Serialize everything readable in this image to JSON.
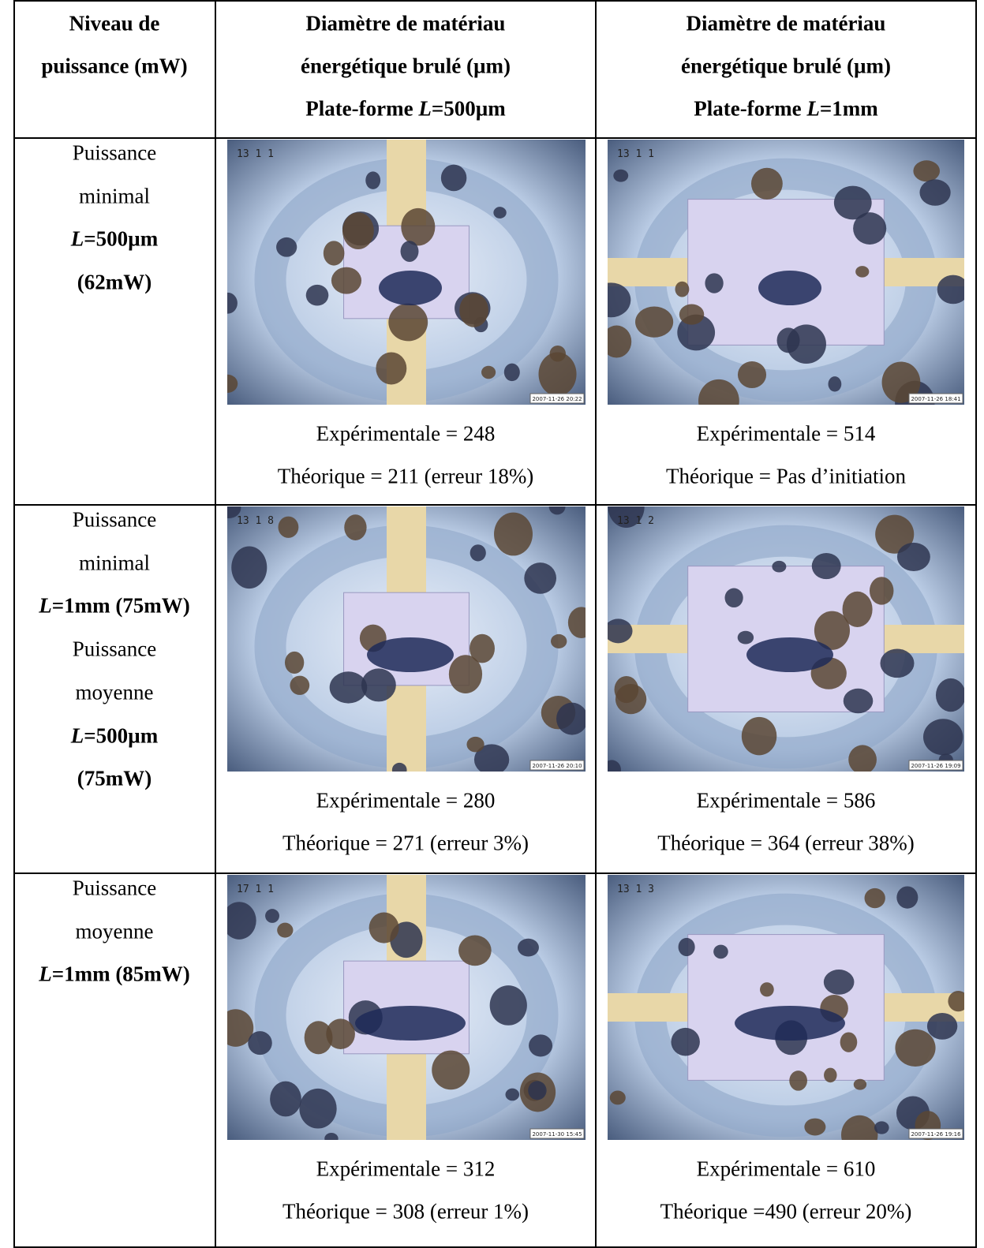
{
  "header": {
    "col1": [
      "Niveau de",
      "puissance (mW)"
    ],
    "col2": [
      "Diamètre de matériau",
      "énergétique brulé (µm)",
      [
        "Plate-forme ",
        "L",
        "=500µm"
      ]
    ],
    "col3": [
      "Diamètre de matériau",
      "énergétique brulé (µm)",
      [
        "Plate-forme ",
        "L",
        "=1mm"
      ]
    ]
  },
  "rows": [
    {
      "label": [
        "Puissance",
        "minimal",
        [
          "",
          "L",
          "=500µm"
        ],
        "(62mW)"
      ],
      "cells": [
        {
          "image_id": "13 1 1",
          "timestamp": "2007-11-26 20:22",
          "experimental": "Expérimentale = 248",
          "theoretical": "Théorique  = 211 (erreur 18%)"
        },
        {
          "image_id": "13 1 1",
          "timestamp": "2007-11-26 18:41",
          "experimental": "Expérimentale = 514",
          "theoretical": "Théorique  = Pas d’initiation"
        }
      ]
    },
    {
      "label": [
        "Puissance",
        "minimal",
        [
          "",
          "L",
          "=1mm (75mW)"
        ],
        "Puissance",
        "moyenne",
        [
          "",
          "L",
          "=500µm"
        ],
        "(75mW)"
      ],
      "cells": [
        {
          "image_id": "13 1 8",
          "timestamp": "2007-11-26 20:10",
          "experimental": "Expérimentale = 280",
          "theoretical": "Théorique = 271 (erreur 3%)"
        },
        {
          "image_id": "13 1 2",
          "timestamp": "2007-11-26 19:09",
          "experimental": "Expérimentale = 586",
          "theoretical": "Théorique = 364 (erreur 38%)"
        }
      ]
    },
    {
      "label": [
        "Puissance",
        "moyenne",
        [
          "",
          "L",
          "=1mm (85mW)"
        ]
      ],
      "cells": [
        {
          "image_id": "17 1 1",
          "timestamp": "2007-11-30 15:45",
          "experimental": "Expérimentale = 312",
          "theoretical": "Théorique = 308 (erreur 1%)"
        },
        {
          "image_id": "13 1 3",
          "timestamp": "2007-11-26 19:16",
          "experimental": "Expérimentale = 610",
          "theoretical": "Théorique =490 (erreur 20%)"
        }
      ]
    }
  ]
}
